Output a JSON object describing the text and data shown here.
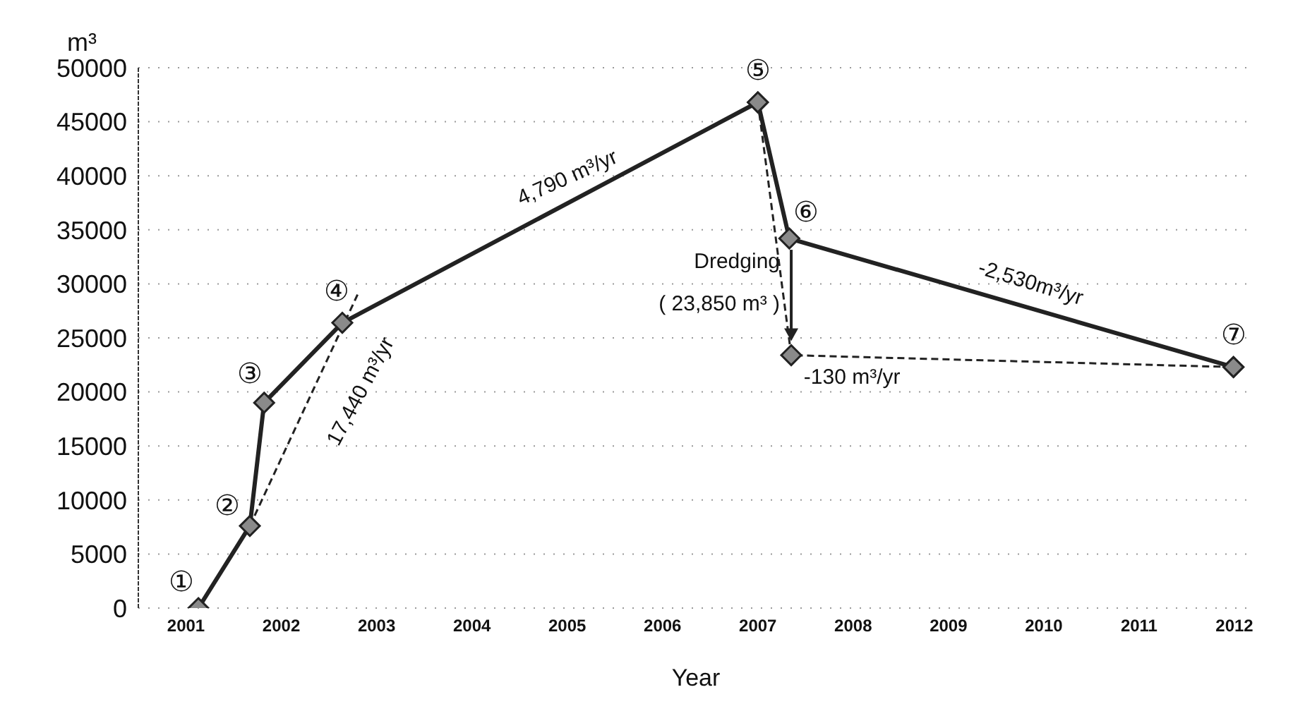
{
  "chart_data": {
    "type": "line",
    "xlabel": "Year",
    "ylabel": "m³",
    "xlim": [
      2000.5,
      2012.2
    ],
    "xticks": [
      2001,
      2002,
      2003,
      2004,
      2005,
      2006,
      2007,
      2008,
      2009,
      2010,
      2011,
      2012
    ],
    "ylim": [
      0,
      50000
    ],
    "yticks": [
      0,
      5000,
      10000,
      15000,
      20000,
      25000,
      30000,
      35000,
      40000,
      45000,
      50000
    ],
    "grid": "y",
    "marker": "diamond",
    "series": [
      {
        "color": "#222222",
        "line_style": "solid",
        "x": [
          2001.13,
          2001.67,
          2001.82,
          2002.64,
          2007.0,
          2007.33,
          2011.99
        ],
        "values": [
          0,
          7600,
          19000,
          26400,
          46800,
          34200,
          22300
        ],
        "value_labels": [
          "①",
          "②",
          "③",
          "④",
          "⑤",
          "⑥",
          "⑦"
        ]
      },
      {
        "color": "#222222",
        "line_style": "dashed",
        "x": [
          2007.0,
          2007.35,
          2011.99
        ],
        "values": [
          46800,
          23400,
          22300
        ]
      },
      {
        "color": "#222222",
        "line_style": "dashed",
        "marker": "none",
        "x": [
          2001.67,
          2002.8
        ],
        "values": [
          7600,
          29000
        ]
      }
    ],
    "annotations": [
      "4,790 m³/yr",
      "17,440 m³/yr",
      "-2,530m³/yr",
      "-130 m³/yr",
      {
        "text": "Dredging\n( 23,850 m³ )",
        "x": 2007.35,
        "y": 23400
      }
    ]
  }
}
